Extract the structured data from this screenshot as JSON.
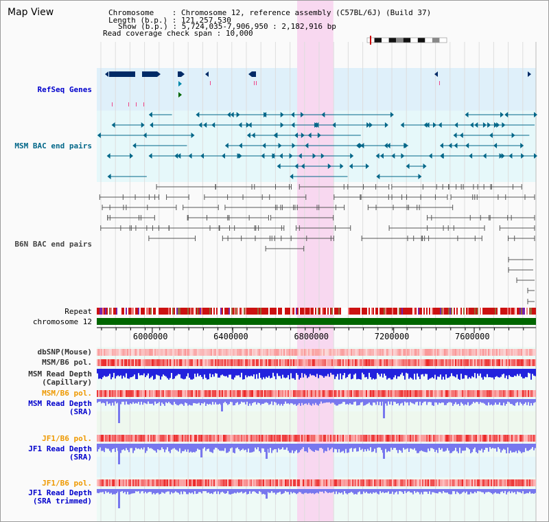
{
  "title": "Map View",
  "info": {
    "chromosome_label": "Chromosome",
    "chromosome_value": "Chromosome 12, reference assembly (C57BL/6J) (Build 37)",
    "length_label": "Length (b.p.)",
    "length_value": "121,257,530",
    "show_label": "Show (b.p.)",
    "show_value": "5,724,035-7,906,950 : 2,182,916 bp",
    "coverage_label": "Read coverage check span",
    "coverage_value": "10,000"
  },
  "tracks": {
    "refseq": "RefSeq Genes",
    "msm_bac": "MSM BAC end pairs",
    "b6n_bac": "B6N BAC end pairs",
    "repeat": "Repeat",
    "chromosome": "chromosome 12",
    "dbsnp": "dbSNP(Mouse)",
    "msm_b6_pol": "MSM/B6 pol.",
    "msm_depth_cap_1": "MSM Read Depth",
    "msm_depth_cap_2": "(Capillary)",
    "msm_b6_pol_2": "MSM/B6 pol.",
    "msm_depth_sra_1": "MSM Read Depth",
    "msm_depth_sra_2": "(SRA)",
    "jf1_b6_pol": "JF1/B6 pol.",
    "jf1_depth_sra_1": "JF1 Read Depth",
    "jf1_depth_sra_2": "(SRA)",
    "jf1_b6_pol_2": "JF1/B6 pol.",
    "jf1_depth_trim_1": "JF1 Read Depth",
    "jf1_depth_trim_2": "(SRA trimmed)"
  },
  "axis": {
    "range_bp": [
      5724035,
      7906950
    ],
    "ticks": [
      6000000,
      6400000,
      6800000,
      7200000,
      7600000
    ],
    "tick_labels": [
      "6000000",
      "6400000",
      "6800000",
      "7200000",
      "7600000"
    ],
    "highlight_bp": [
      6720000,
      6900000
    ]
  },
  "colors": {
    "highlight": "#f8d8f0",
    "refseq_bg": "#dff0fa",
    "msm_bac_bg": "#e6f8fa",
    "gene": "#002a66",
    "gene_alt": "#0088aa",
    "msm_bac": "#006688",
    "b6n_bac": "#555555",
    "chromosome_bar": "#006600",
    "depth_blue": "#2222dd",
    "depth_light": "#7777ee"
  },
  "ideogram": {
    "band_pattern": [
      "w",
      "b",
      "w",
      "b",
      "g",
      "b",
      "w",
      "b",
      "w",
      "g",
      "w"
    ]
  }
}
